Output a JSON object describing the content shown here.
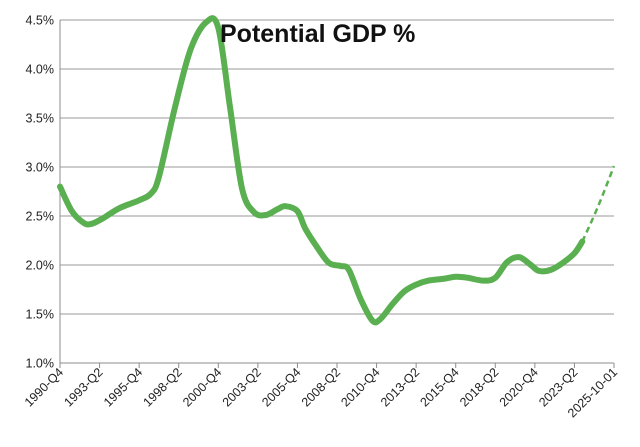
{
  "chart_data": {
    "type": "line",
    "title": "Potential GDP %",
    "xlabel": "",
    "ylabel": "",
    "ylim": [
      1.0,
      4.5
    ],
    "y_ticks": [
      "1.0%",
      "1.5%",
      "2.0%",
      "2.5%",
      "3.0%",
      "3.5%",
      "4.0%",
      "4.5%"
    ],
    "x_tick_labels": [
      "1990-Q4",
      "1993-Q2",
      "1995-Q4",
      "1998-Q2",
      "2000-Q4",
      "2003-Q2",
      "2005-Q4",
      "2008-Q2",
      "2010-Q4",
      "2013-Q2",
      "2015-Q4",
      "2018-Q2",
      "2020-Q4",
      "2023-Q2",
      "2025-10-01"
    ],
    "grid": "horizontal",
    "legend": "none",
    "line_color": "#5aaf50",
    "series": [
      {
        "style": "solid",
        "x": [
          1990.75,
          1991.5,
          1992.25,
          1992.75,
          1993.5,
          1994.5,
          1995.75,
          1996.5,
          1997.0,
          1998.0,
          1999.0,
          2000.0,
          2000.75,
          2001.5,
          2002.25,
          2003.0,
          2003.75,
          2004.5,
          2005.0,
          2005.75,
          2006.25,
          2007.0,
          2007.75,
          2008.5,
          2009.0,
          2009.75,
          2010.5,
          2011.0,
          2011.75,
          2012.5,
          2013.25,
          2014.0,
          2015.0,
          2015.75,
          2016.5,
          2017.5,
          2018.25,
          2019.0,
          2019.75,
          2020.5,
          2021.0,
          2021.75,
          2022.5,
          2023.25,
          2023.75
        ],
        "y": [
          2.8,
          2.55,
          2.43,
          2.42,
          2.48,
          2.58,
          2.66,
          2.73,
          2.9,
          3.6,
          4.2,
          4.48,
          4.42,
          3.6,
          2.78,
          2.54,
          2.51,
          2.57,
          2.6,
          2.55,
          2.37,
          2.18,
          2.02,
          1.99,
          1.95,
          1.65,
          1.43,
          1.45,
          1.6,
          1.73,
          1.8,
          1.84,
          1.86,
          1.88,
          1.87,
          1.84,
          1.87,
          2.03,
          2.08,
          2.0,
          1.94,
          1.95,
          2.02,
          2.12,
          2.24
        ]
      },
      {
        "style": "dashed",
        "x": [
          2023.75,
          2024.75,
          2025.75
        ],
        "y": [
          2.24,
          2.6,
          3.01
        ]
      }
    ]
  }
}
